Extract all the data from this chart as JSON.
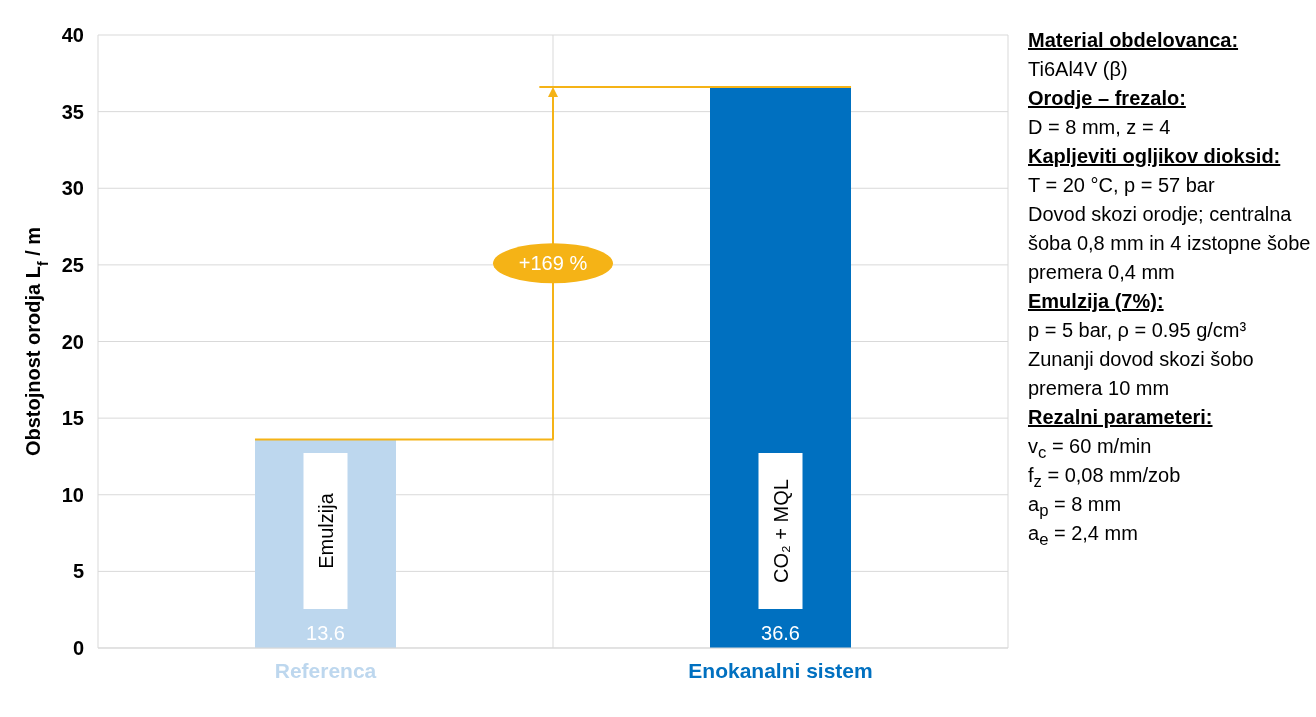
{
  "chart_data": [
    {
      "type": "bar",
      "ylabel": "Obstojnost orodja L$_{f}$ / m",
      "categories": [
        "Referenca",
        "Enokanalni sistem"
      ],
      "values": [
        13.6,
        36.6
      ],
      "colors": [
        "#bdd7ee",
        "#0070c0"
      ],
      "ylim": [
        0,
        40
      ],
      "yticks": [
        0,
        5,
        10,
        15,
        20,
        25,
        30,
        35,
        40
      ],
      "grid": true,
      "data_labels": true,
      "ref_lines": [
        {
          "axis": "y",
          "value": 13.6,
          "color": "#f5b316"
        },
        {
          "axis": "y",
          "value": 36.6,
          "color": "#f5b316"
        }
      ],
      "annotations": [
        "+169 %",
        "Emulzija",
        "CO₂ + MQL"
      ]
    },
    {
      "type": "other",
      "annotations": [
        "Material obdelovanca:",
        "Ti6Al4V (β)",
        "Orodje – frezalo:",
        "D = 8 mm, z = 4",
        "Kapljeviti ogljikov dioksid:",
        "T = 20 °C, p = 57 bar",
        "Dovod skozi orodje; centralna šoba 0,8 mm in 4 izstopne šobe premera 0,4 mm",
        "Emulzija (7%):",
        "p = 5 bar, ρ = 0.95 g/cm³",
        "Zunanji dovod skozi šobo premera 10 mm",
        "Rezalni parameteri:",
        "v$_{c}$ = 60 m/min",
        "f$_{z}$ = 0,08 mm/zob",
        "a$_{p}$ = 8 mm",
        "a$_{e}$ = 2,4 mm"
      ]
    }
  ]
}
